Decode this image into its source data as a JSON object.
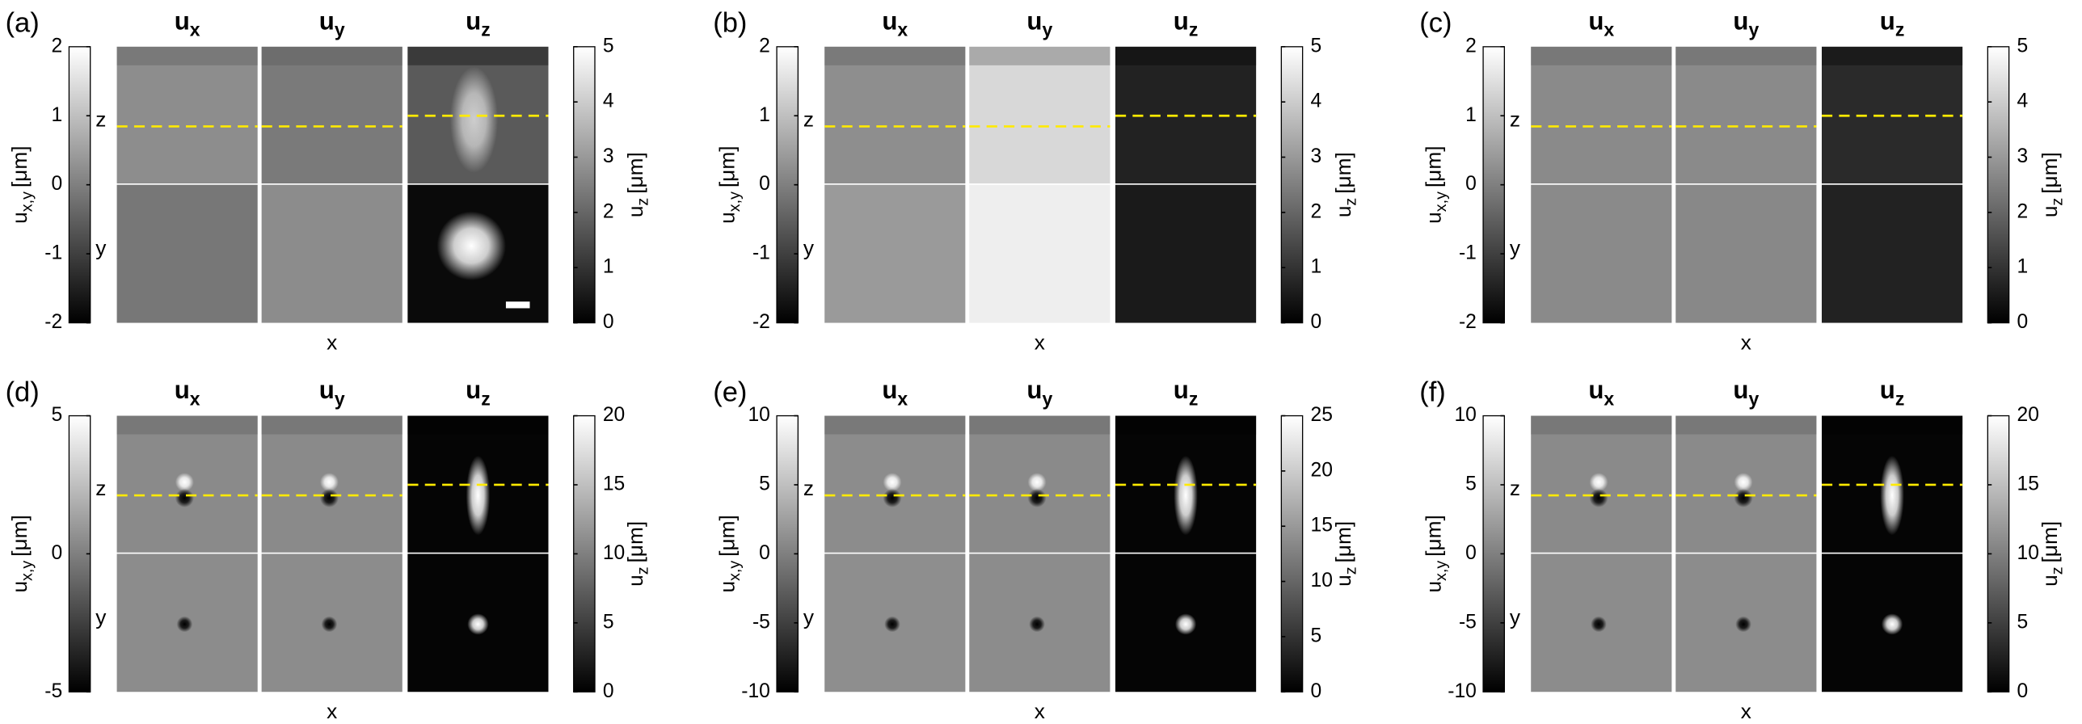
{
  "titles": [
    {
      "main": "u",
      "sub": "x"
    },
    {
      "main": "u",
      "sub": "y"
    },
    {
      "main": "u",
      "sub": "z"
    }
  ],
  "left_axis_label": {
    "main": "u",
    "sub": "x,y",
    "unit": "[μm]"
  },
  "right_axis_label": {
    "main": "u",
    "sub": "z",
    "unit": "[μm]"
  },
  "section_labels": [
    "z",
    "y"
  ],
  "x_label": "x",
  "panels": [
    {
      "label": "(a)",
      "left_lim": [
        -2,
        2
      ],
      "left_ticks": [
        -2,
        -1,
        0,
        1,
        2
      ],
      "right_lim": [
        0,
        5
      ],
      "right_ticks": [
        0,
        1,
        2,
        3,
        4,
        5
      ]
    },
    {
      "label": "(b)",
      "left_lim": [
        -2,
        2
      ],
      "left_ticks": [
        -2,
        -1,
        0,
        1,
        2
      ],
      "right_lim": [
        0,
        5
      ],
      "right_ticks": [
        0,
        1,
        2,
        3,
        4,
        5
      ]
    },
    {
      "label": "(c)",
      "left_lim": [
        -2,
        2
      ],
      "left_ticks": [
        -2,
        -1,
        0,
        1,
        2
      ],
      "right_lim": [
        0,
        5
      ],
      "right_ticks": [
        0,
        1,
        2,
        3,
        4,
        5
      ]
    },
    {
      "label": "(d)",
      "left_lim": [
        -5,
        5
      ],
      "left_ticks": [
        -5,
        0,
        5
      ],
      "right_lim": [
        0,
        20
      ],
      "right_ticks": [
        0,
        5,
        10,
        15,
        20
      ]
    },
    {
      "label": "(e)",
      "left_lim": [
        -10,
        10
      ],
      "left_ticks": [
        -10,
        -5,
        0,
        5,
        10
      ],
      "right_lim": [
        0,
        25
      ],
      "right_ticks": [
        0,
        5,
        10,
        15,
        20,
        25
      ]
    },
    {
      "label": "(f)",
      "left_lim": [
        -10,
        10
      ],
      "left_ticks": [
        -10,
        -5,
        0,
        5,
        10
      ],
      "right_lim": [
        0,
        20
      ],
      "right_ticks": [
        0,
        5,
        10,
        15,
        20
      ]
    }
  ]
}
